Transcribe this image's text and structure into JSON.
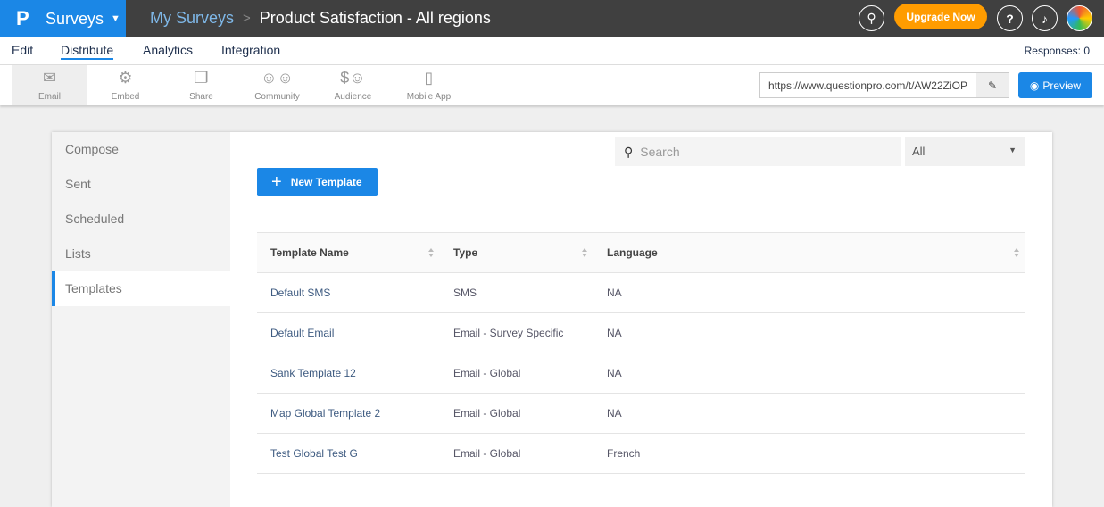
{
  "header": {
    "logo": "P",
    "product": "Surveys",
    "breadcrumb": [
      "My Surveys",
      "Product Satisfaction - All regions"
    ],
    "upgrade": "Upgrade Now",
    "icons": [
      "search-icon",
      "help-icon",
      "bell-icon",
      "avatar"
    ]
  },
  "nav": {
    "tabs": [
      "Edit",
      "Distribute",
      "Analytics",
      "Integration"
    ],
    "active": "Distribute",
    "responses": "Responses: 0"
  },
  "toolbar": {
    "items": [
      {
        "label": "Email",
        "icon": "envelope-icon"
      },
      {
        "label": "Embed",
        "icon": "embed-icon"
      },
      {
        "label": "Share",
        "icon": "share-icon"
      },
      {
        "label": "Community",
        "icon": "community-icon"
      },
      {
        "label": "Audience",
        "icon": "audience-icon"
      },
      {
        "label": "Mobile App",
        "icon": "mobile-icon"
      }
    ],
    "url": "https://www.questionpro.com/t/AW22ZiOP",
    "preview": "Preview"
  },
  "sidebar": {
    "items": [
      "Compose",
      "Sent",
      "Scheduled",
      "Lists",
      "Templates"
    ],
    "active": "Templates"
  },
  "main": {
    "search_placeholder": "Search",
    "filter": "All",
    "new_template": "New Template",
    "columns": [
      "Template Name",
      "Type",
      "Language"
    ],
    "rows": [
      [
        "Default SMS",
        "SMS",
        "NA"
      ],
      [
        "Default Email",
        "Email - Survey Specific",
        "NA"
      ],
      [
        "Sank Template 12",
        "Email - Global",
        "NA"
      ],
      [
        "Map Global Template 2",
        "Email - Global",
        "NA"
      ],
      [
        "Test Global Test G",
        "Email - Global",
        "French"
      ]
    ]
  },
  "colors": {
    "accent": "#1b87e6",
    "topbar": "#404040",
    "upgrade": "#ff9c00"
  }
}
